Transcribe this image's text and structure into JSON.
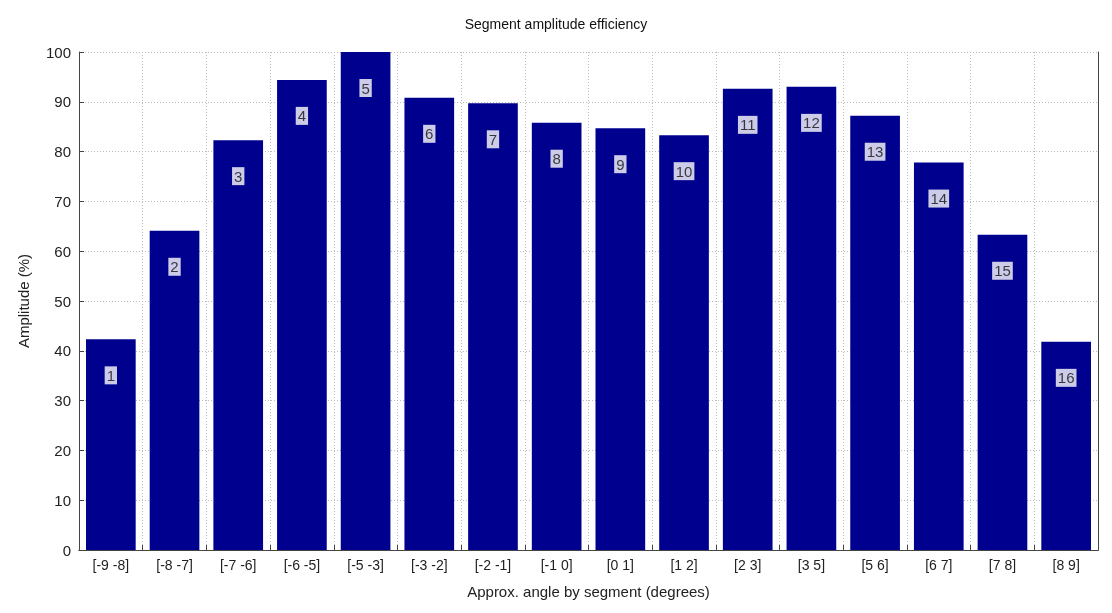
{
  "chart_data": {
    "type": "bar",
    "title": "Segment amplitude efficiency",
    "xlabel": "Approx. angle by segment (degrees)",
    "ylabel": "Amplitude (%)",
    "categories": [
      "[-9 -8]",
      "[-8 -7]",
      "[-7 -6]",
      "[-6 -5]",
      "[-5 -3]",
      "[-3 -2]",
      "[-2 -1]",
      "[-1 0]",
      "[0 1]",
      "[1 2]",
      "[2 3]",
      "[3 5]",
      "[5 6]",
      "[6 7]",
      "[7 8]",
      "[8 9]"
    ],
    "values": [
      42.3,
      64.1,
      82.3,
      94.4,
      100,
      90.8,
      89.7,
      85.8,
      84.7,
      83.3,
      92.6,
      93.0,
      87.2,
      77.8,
      63.3,
      41.8
    ],
    "annotations": [
      {
        "text": "1",
        "x": "[-9 -8]",
        "y": 42.3
      },
      {
        "text": "2",
        "x": "[-8 -7]",
        "y": 64.1
      },
      {
        "text": "3",
        "x": "[-7 -6]",
        "y": 82.3
      },
      {
        "text": "4",
        "x": "[-6 -5]",
        "y": 94.4
      },
      {
        "text": "5",
        "x": "[-5 -3]",
        "y": 100
      },
      {
        "text": "6",
        "x": "[-3 -2]",
        "y": 90.8
      },
      {
        "text": "7",
        "x": "[-2 -1]",
        "y": 89.7
      },
      {
        "text": "8",
        "x": "[-1 0]",
        "y": 85.8
      },
      {
        "text": "9",
        "x": "[0 1]",
        "y": 84.7
      },
      {
        "text": "10",
        "x": "[1 2]",
        "y": 83.3
      },
      {
        "text": "11",
        "x": "[2 3]",
        "y": 92.6
      },
      {
        "text": "12",
        "x": "[3 5]",
        "y": 93.0
      },
      {
        "text": "13",
        "x": "[5 6]",
        "y": 87.2
      },
      {
        "text": "14",
        "x": "[6 7]",
        "y": 77.8
      },
      {
        "text": "15",
        "x": "[7 8]",
        "y": 63.3
      },
      {
        "text": "16",
        "x": "[8 9]",
        "y": 41.8
      }
    ],
    "color": "#00008f",
    "ylim": [
      0,
      100
    ],
    "yticks": [
      0,
      10,
      20,
      30,
      40,
      50,
      60,
      70,
      80,
      90,
      100
    ],
    "grid": true
  }
}
